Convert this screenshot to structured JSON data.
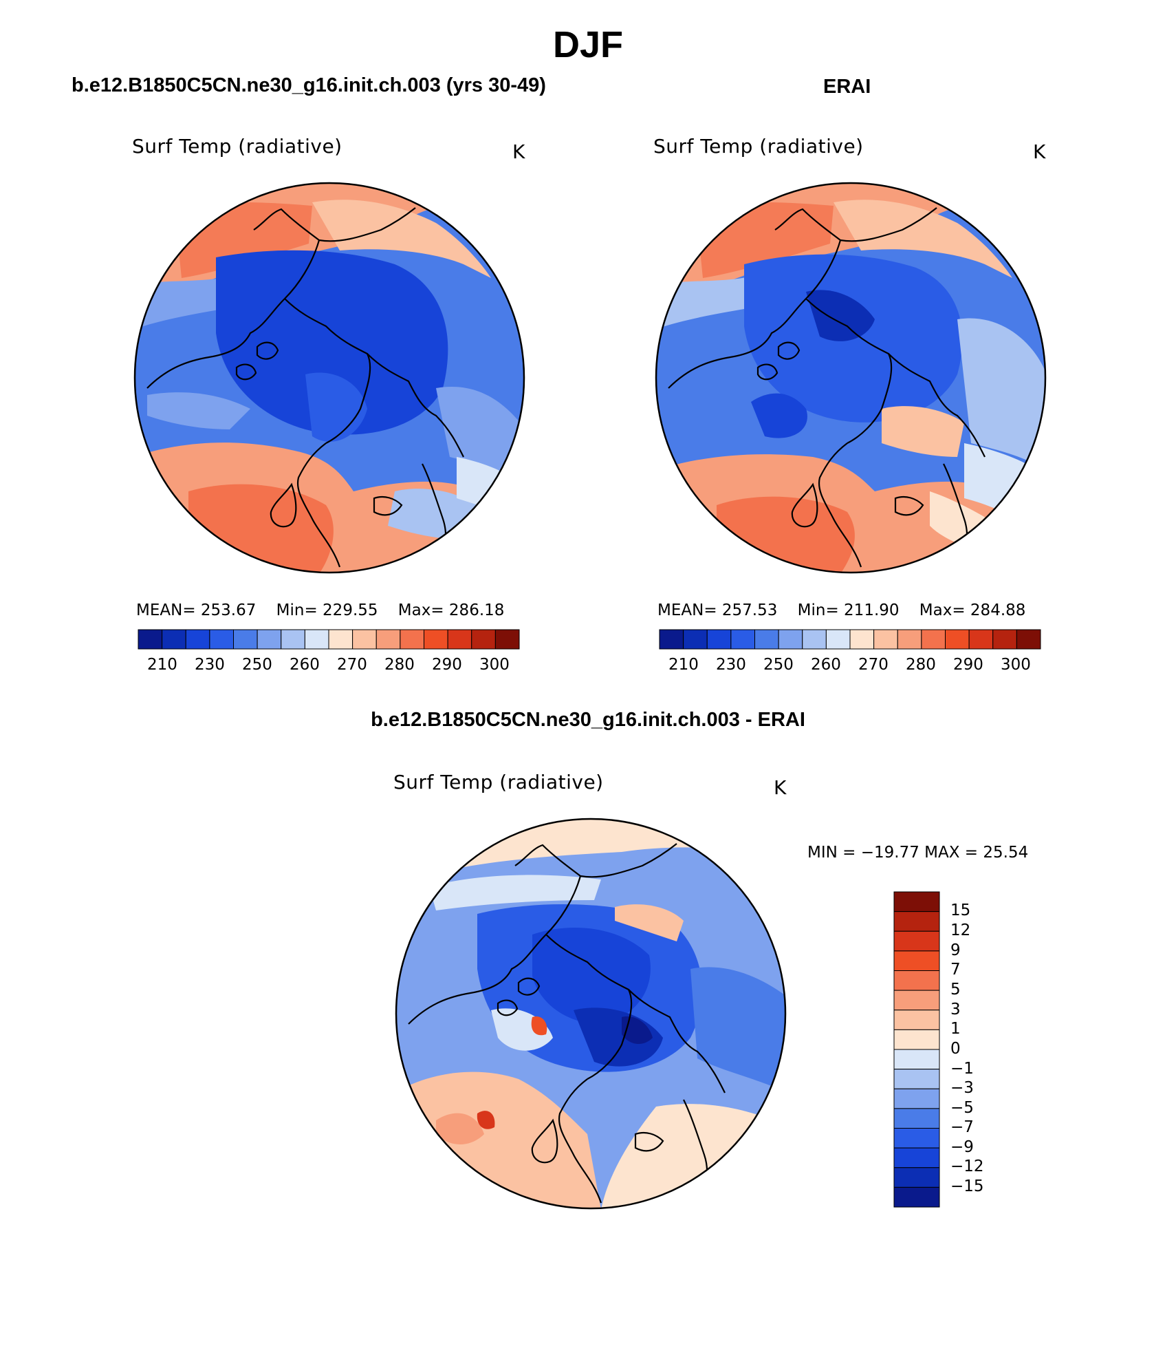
{
  "title": "DJF",
  "colors": {
    "abs": [
      "#0a1a8c",
      "#0c2eb4",
      "#1744d8",
      "#2a5ce6",
      "#4a7ce8",
      "#7ea2ee",
      "#a9c3f2",
      "#d9e6f8",
      "#fde4cf",
      "#fbc2a2",
      "#f79e7b",
      "#f3724d",
      "#ee4f25",
      "#d8361a",
      "#b5230f",
      "#7d0f06"
    ],
    "diff": [
      "#0a1a8c",
      "#0c2eb4",
      "#1744d8",
      "#2a5ce6",
      "#4a7ce8",
      "#7ea2ee",
      "#a9c3f2",
      "#d9e6f8",
      "#fde4cf",
      "#fbc2a2",
      "#f79e7b",
      "#f3724d",
      "#ee4f25",
      "#d8361a",
      "#b5230f",
      "#7d0f06"
    ]
  },
  "panel1": {
    "heading": "b.e12.B1850C5CN.ne30_g16.init.ch.003 (yrs 30-49)",
    "variable": "Surf Temp (radiative)",
    "units": "K",
    "stats": {
      "mean_label": "MEAN=",
      "mean": "253.67",
      "min_label": "Min=",
      "min": "229.55",
      "max_label": "Max=",
      "max": "286.18"
    },
    "ticks": [
      "210",
      "230",
      "250",
      "260",
      "270",
      "280",
      "290",
      "300"
    ]
  },
  "panel2": {
    "heading": "ERAI",
    "variable": "Surf Temp (radiative)",
    "units": "K",
    "stats": {
      "mean_label": "MEAN=",
      "mean": "257.53",
      "min_label": "Min=",
      "min": "211.90",
      "max_label": "Max=",
      "max": "284.88"
    },
    "ticks": [
      "210",
      "230",
      "250",
      "260",
      "270",
      "280",
      "290",
      "300"
    ]
  },
  "panel3": {
    "heading": "b.e12.B1850C5CN.ne30_g16.init.ch.003 - ERAI",
    "variable": "Surf Temp (radiative)",
    "units": "K",
    "minmax": "MIN = −19.77  MAX =   25.54",
    "ticks": [
      "15",
      "12",
      "9",
      "7",
      "5",
      "3",
      "1",
      "0",
      "−1",
      "−3",
      "−5",
      "−7",
      "−9",
      "−12",
      "−15"
    ]
  }
}
